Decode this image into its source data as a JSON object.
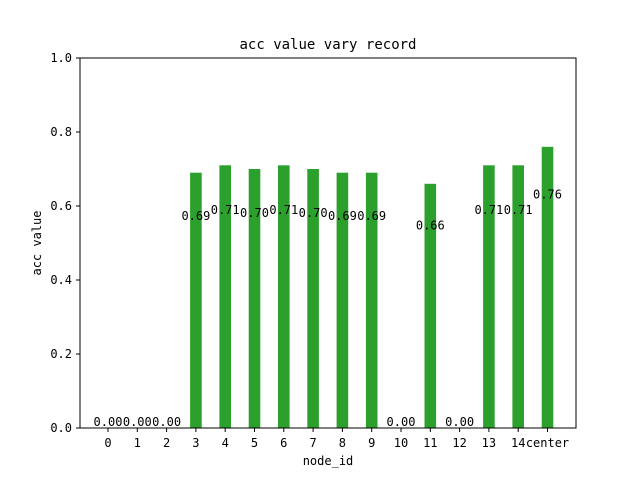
{
  "chart_data": {
    "type": "bar",
    "title": "acc value vary record",
    "xlabel": "node_id",
    "ylabel": "acc value",
    "categories": [
      "0",
      "1",
      "2",
      "3",
      "4",
      "5",
      "6",
      "7",
      "8",
      "9",
      "10",
      "11",
      "12",
      "13",
      "14",
      "center"
    ],
    "values": [
      0.0,
      0.0,
      0.0,
      0.69,
      0.71,
      0.7,
      0.71,
      0.7,
      0.69,
      0.69,
      0.0,
      0.66,
      0.0,
      0.71,
      0.71,
      0.76
    ],
    "data_labels": [
      "0.00",
      "0.00",
      "0.00",
      "0.69",
      "0.71",
      "0.70",
      "0.71",
      "0.70",
      "0.69",
      "0.69",
      "0.00",
      "0.66",
      "0.00",
      "0.71",
      "0.71",
      "0.76"
    ],
    "ylim": [
      0,
      1.0
    ],
    "yticks": [
      0.0,
      0.2,
      0.4,
      0.6,
      0.8,
      1.0
    ],
    "ytick_labels": [
      "0.0",
      "0.2",
      "0.4",
      "0.6",
      "0.8",
      "1.0"
    ],
    "bar_color": "#2ca02c",
    "grid": false
  }
}
